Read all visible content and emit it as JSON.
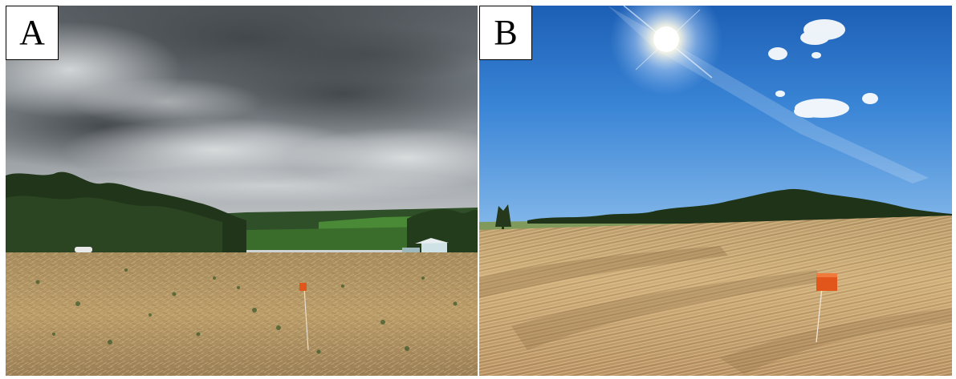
{
  "panels": [
    {
      "label": "A",
      "sky": "overcast-storm-clouds",
      "ground": "harvested-straw-field"
    },
    {
      "label": "B",
      "sky": "clear-blue-sky-with-sun",
      "ground": "lodged-straw-field"
    }
  ],
  "colors": {
    "storm_cloud_dark": "#4f5559",
    "storm_cloud_light": "#c9ccce",
    "tree_line": "#243a1c",
    "green_field": "#3f7a2f",
    "straw_a": "#b99a66",
    "straw_b": "#caa672",
    "sky_blue_top": "#1e63b8",
    "sky_blue_bottom": "#7db2e8",
    "marker_orange": "#e2561c",
    "sun_white": "#ffffff"
  }
}
